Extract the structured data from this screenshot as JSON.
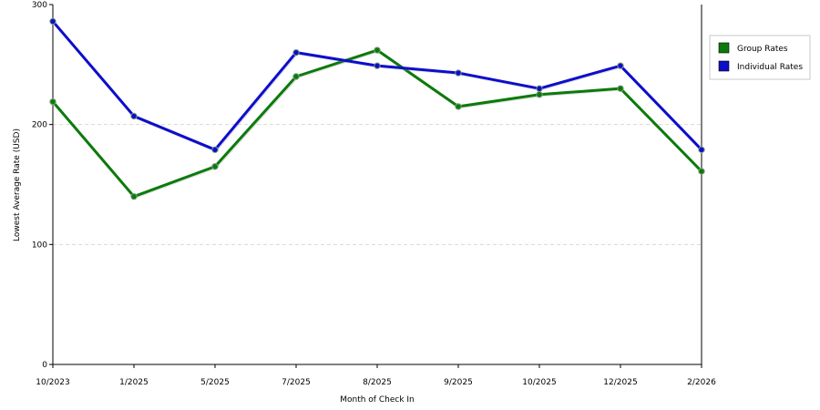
{
  "chart_data": {
    "type": "line",
    "title": "",
    "xlabel": "Month of Check In",
    "ylabel": "Lowest Average Rate (USD)",
    "categories": [
      "10/2023",
      "1/2025",
      "5/2025",
      "7/2025",
      "8/2025",
      "9/2025",
      "10/2025",
      "12/2025",
      "2/2026"
    ],
    "ylim": [
      0,
      300
    ],
    "yticks": [
      0,
      100,
      200,
      300
    ],
    "grid": "horizontal-dashed",
    "legend_position": "right",
    "series": [
      {
        "name": "Group Rates",
        "color": "#0b7a0b",
        "values": [
          219,
          140,
          165,
          240,
          262,
          215,
          225,
          230,
          161
        ]
      },
      {
        "name": "Individual Rates",
        "color": "#0d0dcc",
        "values": [
          286,
          207,
          179,
          260,
          249,
          243,
          230,
          249,
          179
        ]
      }
    ]
  }
}
